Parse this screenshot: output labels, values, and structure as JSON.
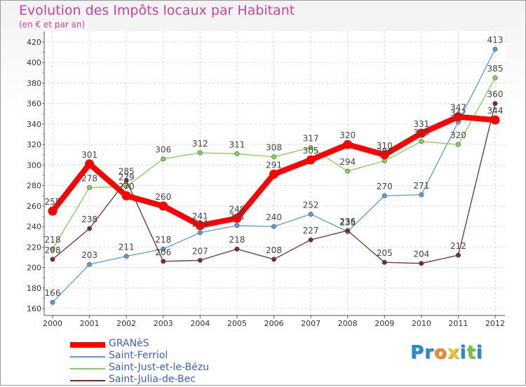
{
  "chart_data": {
    "type": "line",
    "title": "Evolution des Impôts locaux par Habitant",
    "subtitle": "(en € et par an)",
    "xlabel": "",
    "ylabel": "",
    "x": [
      "2000",
      "2001",
      "2002",
      "2003",
      "2004",
      "2005",
      "2006",
      "2007",
      "2008",
      "2009",
      "2010",
      "2011",
      "2012"
    ],
    "ylim": [
      160,
      420
    ],
    "yticks": [
      160,
      180,
      200,
      220,
      240,
      260,
      280,
      300,
      320,
      340,
      360,
      380,
      400,
      420
    ],
    "grid": true,
    "legend_position": "bottom-left",
    "series": [
      {
        "name": "GRANèS",
        "color": "#ff0000",
        "values": [
          255,
          301,
          270,
          260,
          241,
          248,
          291,
          305,
          320,
          310,
          331,
          347,
          344
        ],
        "labels": [
          "255",
          "301",
          "270",
          "260",
          "241",
          "248",
          "291",
          "305",
          "320",
          "310",
          "331",
          "347",
          "344"
        ]
      },
      {
        "name": "Saint-Ferriol",
        "color": "#5b9bd5",
        "values": [
          166,
          203,
          211,
          218,
          234,
          241,
          240,
          252,
          235,
          270,
          271,
          342,
          413
        ],
        "labels": [
          "166",
          "203",
          "211",
          "218",
          "234",
          "241",
          "240",
          "252",
          "235",
          "270",
          "271",
          "342",
          "413"
        ]
      },
      {
        "name": "Saint-Just-et-le-Bézu",
        "color": "#7fd34e",
        "values": [
          218,
          278,
          279,
          306,
          312,
          311,
          308,
          317,
          294,
          304,
          323,
          320,
          385
        ],
        "labels": [
          "218",
          "278",
          "279",
          "306",
          "312",
          "311",
          "308",
          "317",
          "294",
          "304",
          "323",
          "320",
          "385"
        ]
      },
      {
        "name": "Saint-Julia-de-Bec",
        "color": "#7a2a2a",
        "values": [
          208,
          238,
          285,
          206,
          207,
          218,
          208,
          227,
          236,
          205,
          204,
          212,
          360
        ],
        "labels": [
          "208",
          "238",
          "285",
          "206",
          "207",
          "218",
          "208",
          "227",
          "236",
          "205",
          "204",
          "212",
          "360"
        ]
      }
    ]
  },
  "logo": {
    "letters": [
      "P",
      "r",
      "o",
      "x",
      "i",
      "t",
      "i"
    ],
    "colors": [
      "#1f8dd6",
      "#1f8dd6",
      "#f28a1e",
      "#f2c21e",
      "#1f8dd6",
      "#7fc041",
      "#1f8dd6"
    ]
  }
}
